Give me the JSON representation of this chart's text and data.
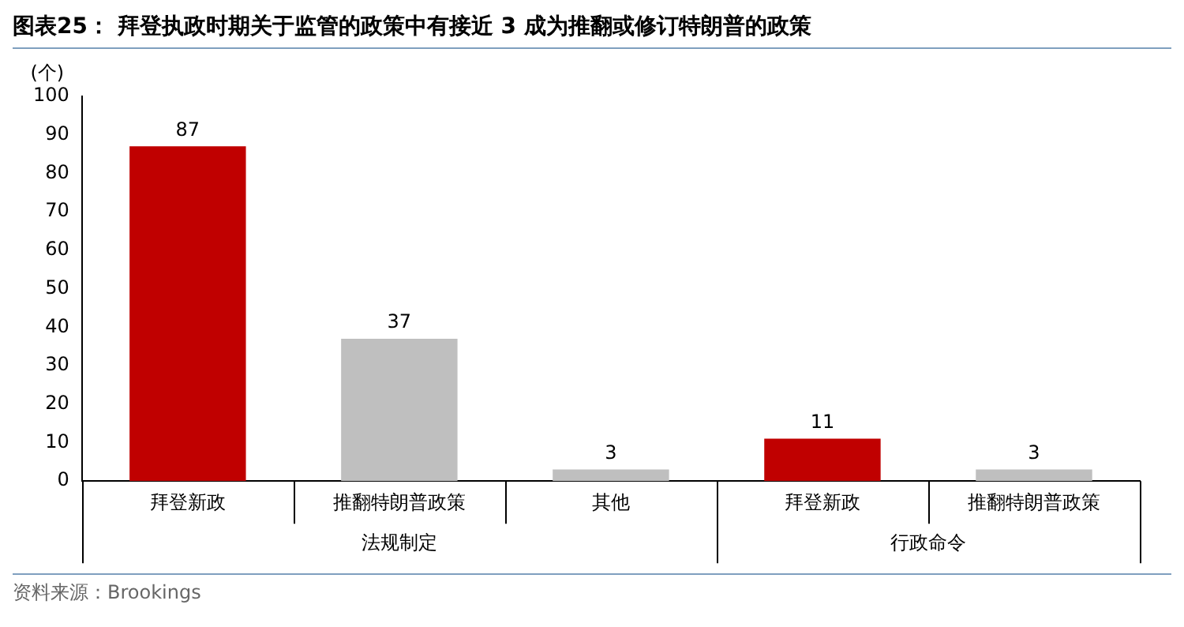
{
  "chart_data": {
    "type": "bar",
    "title": "图表25：  拜登执政时期关于监管的政策中有接近 3 成为推翻或修订特朗普的政策",
    "ylabel": "(个)",
    "categories": [
      "拜登新政",
      "推翻特朗普政策",
      "其他",
      "拜登新政",
      "推翻特朗普政策"
    ],
    "values": [
      87,
      37,
      3,
      11,
      3
    ],
    "colors": [
      "#c00000",
      "#bfbfbf",
      "#bfbfbf",
      "#c00000",
      "#bfbfbf"
    ],
    "ylim": [
      0,
      100
    ],
    "yticks": [
      0,
      10,
      20,
      30,
      40,
      50,
      60,
      70,
      80,
      90,
      100
    ],
    "data_labels": true,
    "grid": false,
    "legend": false,
    "annotations": [
      "法规制定",
      "行政命令",
      "资料来源：Brookings"
    ]
  }
}
